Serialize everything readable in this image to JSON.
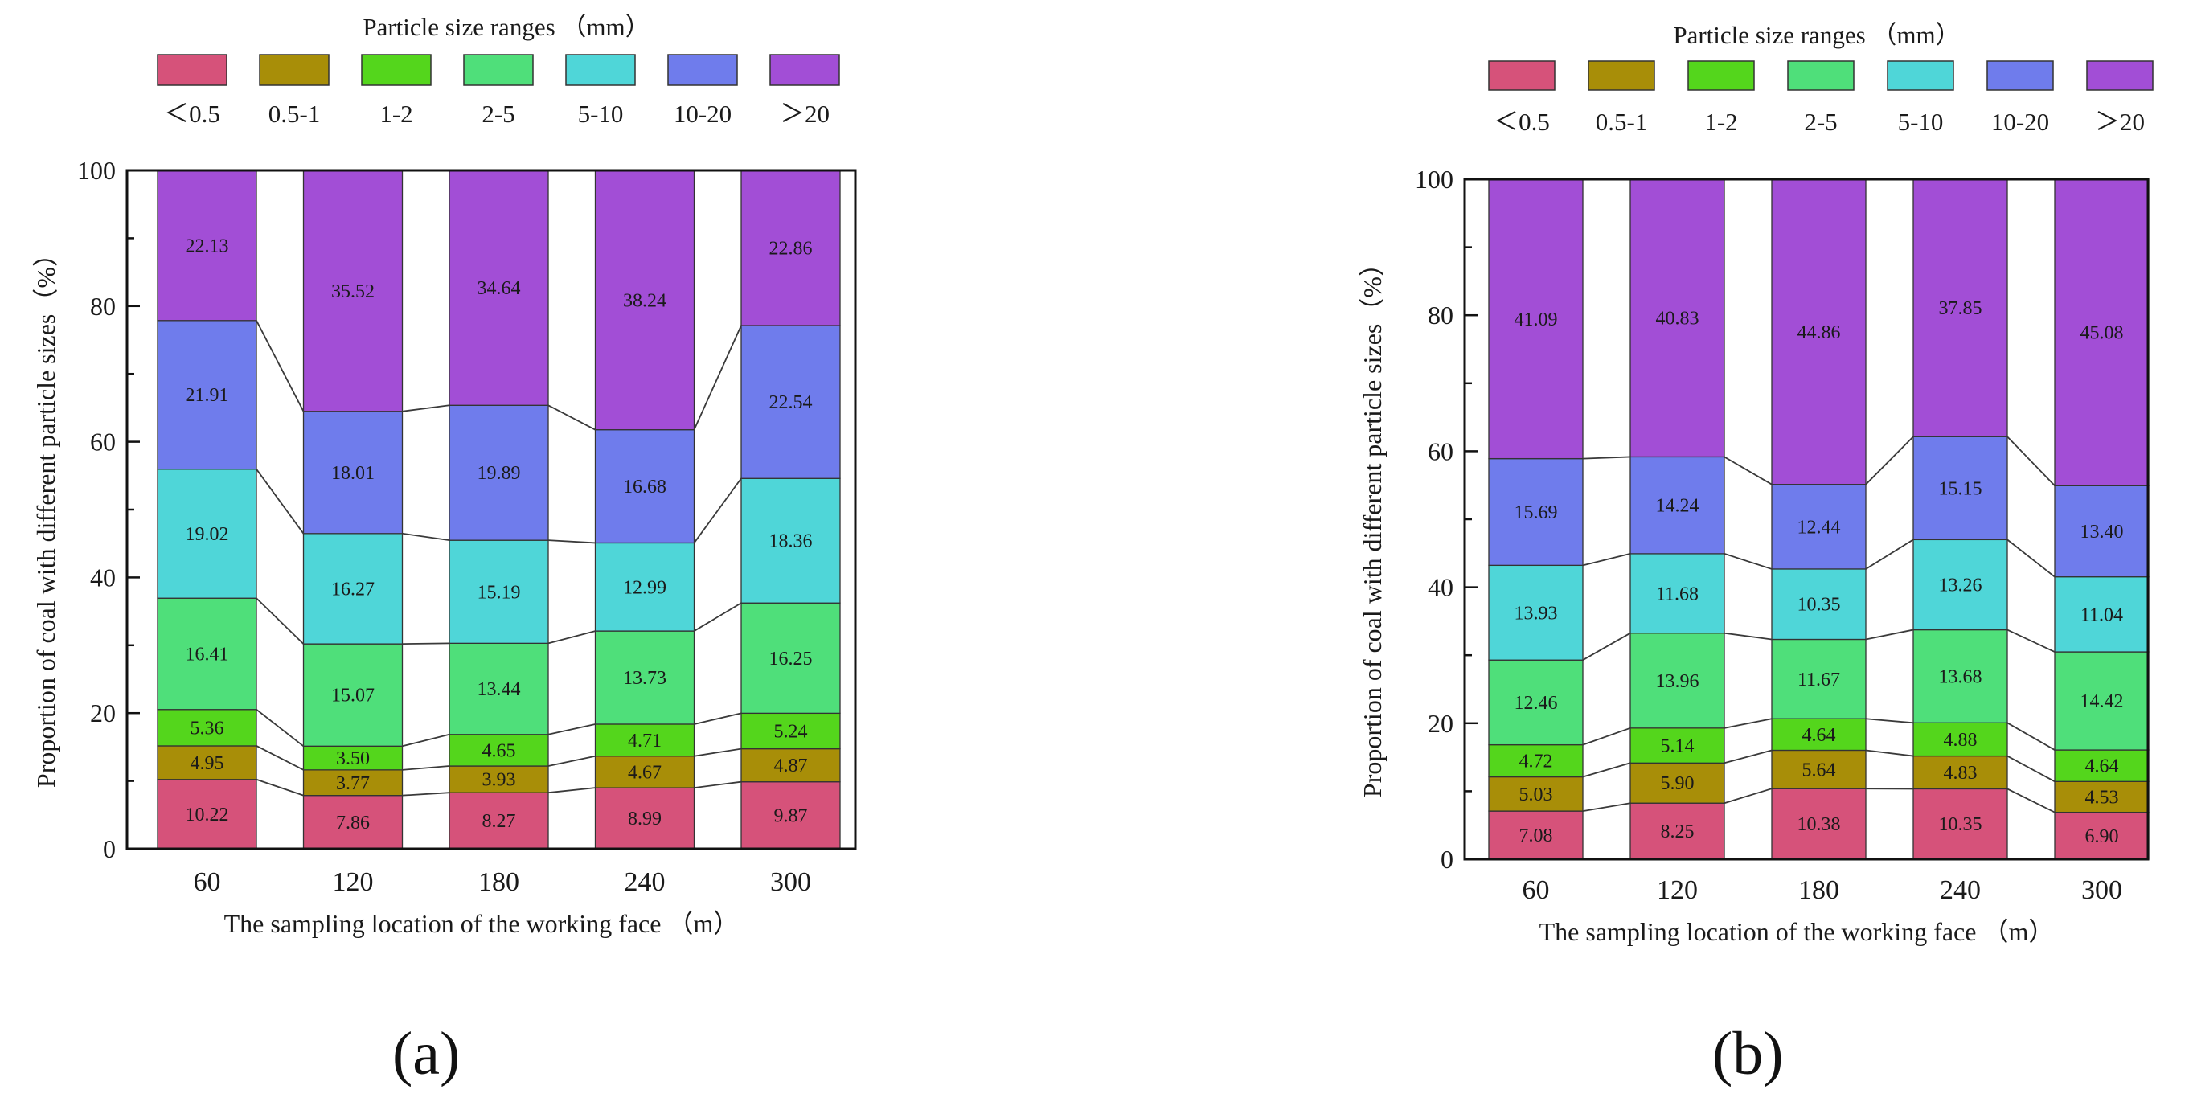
{
  "colors": [
    "#d6527a",
    "#a88e08",
    "#54d61c",
    "#4fdf7a",
    "#4fd6d8",
    "#6f7cec",
    "#a24ed6"
  ],
  "panel_labels": {
    "a": "(a)",
    "b": "(b)"
  },
  "chart_data": [
    {
      "id": "a",
      "type": "bar",
      "stacked": true,
      "title": "",
      "legend_title": "Particle size ranges （mm）",
      "legend_position": "top",
      "categories": [
        "60",
        "120",
        "180",
        "240",
        "300"
      ],
      "xlabel": "The sampling location of the working face （m）",
      "ylabel": "Proportion of coal with different particle sizes（%）",
      "ylim": [
        0,
        100
      ],
      "yticks": [
        "0",
        "20",
        "40",
        "60",
        "80",
        "100"
      ],
      "series": [
        {
          "name": "＜0.5",
          "values": [
            10.22,
            7.86,
            8.27,
            8.99,
            9.87
          ],
          "labels": [
            "10.22",
            "7.86",
            "8.27",
            "8.99",
            "9.87"
          ]
        },
        {
          "name": "0.5-1",
          "values": [
            4.95,
            3.77,
            3.93,
            4.67,
            4.87
          ],
          "labels": [
            "4.95",
            "3.77",
            "3.93",
            "4.67",
            "4.87"
          ]
        },
        {
          "name": "1-2",
          "values": [
            5.36,
            3.5,
            4.65,
            4.71,
            5.24
          ],
          "labels": [
            "5.36",
            "3.50",
            "4.65",
            "4.71",
            "5.24"
          ]
        },
        {
          "name": "2-5",
          "values": [
            16.41,
            15.07,
            13.44,
            13.73,
            16.25
          ],
          "labels": [
            "16.41",
            "15.07",
            "13.44",
            "13.73",
            "16.25"
          ]
        },
        {
          "name": "5-10",
          "values": [
            19.02,
            16.27,
            15.19,
            12.99,
            18.36
          ],
          "labels": [
            "19.02",
            "16.27",
            "15.19",
            "12.99",
            "18.36"
          ]
        },
        {
          "name": "10-20",
          "values": [
            21.91,
            18.01,
            19.89,
            16.68,
            22.54
          ],
          "labels": [
            "21.91",
            "18.01",
            "19.89",
            "16.68",
            "22.54"
          ]
        },
        {
          "name": "＞20",
          "values": [
            22.13,
            35.52,
            34.64,
            38.24,
            22.86
          ],
          "labels": [
            "22.13",
            "35.52",
            "34.64",
            "38.24",
            "22.86"
          ]
        }
      ]
    },
    {
      "id": "b",
      "type": "bar",
      "stacked": true,
      "title": "",
      "legend_title": "Particle size ranges （mm）",
      "legend_position": "top",
      "categories": [
        "60",
        "120",
        "180",
        "240",
        "300"
      ],
      "xlabel": "The sampling location of the working face （m）",
      "ylabel": "Proportion of coal with different particle sizes（%）",
      "ylim": [
        0,
        100
      ],
      "yticks": [
        "0",
        "20",
        "40",
        "60",
        "80",
        "100"
      ],
      "series": [
        {
          "name": "＜0.5",
          "values": [
            7.08,
            8.25,
            10.38,
            10.35,
            6.9
          ],
          "labels": [
            "7.08",
            "8.25",
            "10.38",
            "10.35",
            "6.90"
          ]
        },
        {
          "name": "0.5-1",
          "values": [
            5.03,
            5.9,
            5.64,
            4.83,
            4.53
          ],
          "labels": [
            "5.03",
            "5.90",
            "5.64",
            "4.83",
            "4.53"
          ]
        },
        {
          "name": "1-2",
          "values": [
            4.72,
            5.14,
            4.64,
            4.88,
            4.64
          ],
          "labels": [
            "4.72",
            "5.14",
            "4.64",
            "4.88",
            "4.64"
          ]
        },
        {
          "name": "2-5",
          "values": [
            12.46,
            13.96,
            11.67,
            13.68,
            14.42
          ],
          "labels": [
            "12.46",
            "13.96",
            "11.67",
            "13.68",
            "14.42"
          ]
        },
        {
          "name": "5-10",
          "values": [
            13.93,
            11.68,
            10.35,
            13.26,
            11.04
          ],
          "labels": [
            "13.93",
            "11.68",
            "10.35",
            "13.26",
            "11.04"
          ]
        },
        {
          "name": "10-20",
          "values": [
            15.69,
            14.24,
            12.44,
            15.15,
            13.4
          ],
          "labels": [
            "15.69",
            "14.24",
            "12.44",
            "15.15",
            "13.40"
          ]
        },
        {
          "name": "＞20",
          "values": [
            41.09,
            40.83,
            44.86,
            37.85,
            45.08
          ],
          "labels": [
            "41.09",
            "40.83",
            "44.86",
            "37.85",
            "45.08"
          ]
        }
      ]
    }
  ]
}
